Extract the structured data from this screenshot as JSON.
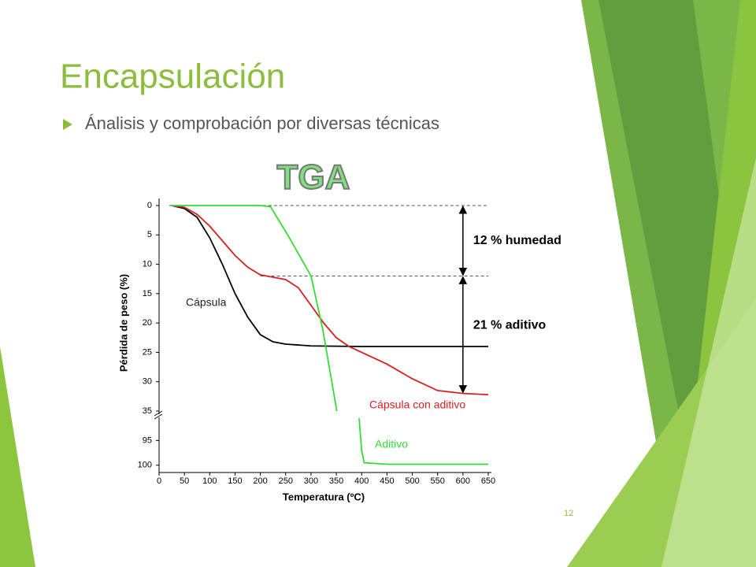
{
  "slide": {
    "title": "Encapsulación",
    "bullet": "Ánalisis y comprobación por diversas técnicas",
    "page_number": "12"
  },
  "chart_data": {
    "type": "line",
    "title": "TGA",
    "x_label": "Temperatura (ºC)",
    "y_label": "Pérdida de peso (%)",
    "xlim": [
      0,
      650
    ],
    "xticks": [
      0,
      50,
      100,
      150,
      200,
      250,
      300,
      350,
      400,
      450,
      500,
      550,
      600,
      650
    ],
    "ylim": [
      0,
      35
    ],
    "yticks": [
      0,
      5,
      10,
      15,
      20,
      25,
      30,
      35
    ],
    "ylim_lower": [
      90,
      101
    ],
    "yticks_lower": [
      95,
      100
    ],
    "y_inverted": true,
    "y_broken": true,
    "series": [
      {
        "name": "Cápsula",
        "color": "#000000",
        "x": [
          25,
          50,
          75,
          100,
          125,
          150,
          175,
          200,
          225,
          250,
          300,
          400,
          500,
          650
        ],
        "values": [
          0,
          0.5,
          2,
          5.5,
          10,
          15,
          19,
          22,
          23.2,
          23.6,
          23.9,
          24,
          24,
          24
        ]
      },
      {
        "name": "Cápsula con aditivo",
        "color": "#d62020",
        "x": [
          25,
          50,
          75,
          100,
          125,
          150,
          175,
          200,
          225,
          250,
          275,
          300,
          325,
          350,
          375,
          400,
          450,
          500,
          550,
          600,
          650
        ],
        "values": [
          0,
          0.3,
          1.5,
          3.5,
          6,
          8.5,
          10.5,
          11.8,
          12.2,
          12.6,
          14,
          17,
          20,
          22.5,
          24,
          25,
          27,
          29.5,
          31.5,
          32,
          32.2
        ]
      },
      {
        "name": "Aditivo",
        "color": "#33dd33",
        "x": [
          25,
          100,
          200,
          220,
          254,
          300,
          323,
          339,
          351,
          370,
          395,
          400,
          405,
          450,
          650
        ],
        "values": [
          0,
          0,
          0,
          0.2,
          5,
          12,
          21,
          29,
          35,
          null,
          90.5,
          97,
          99.5,
          99.8,
          99.8
        ]
      }
    ],
    "annotations": [
      {
        "text": "12 % humedad",
        "from": 0,
        "to": 12,
        "x": 600,
        "line_from": 20
      },
      {
        "text": "21 % aditivo",
        "from": 12,
        "to": 32,
        "x": 600,
        "line_from": 200
      }
    ]
  }
}
